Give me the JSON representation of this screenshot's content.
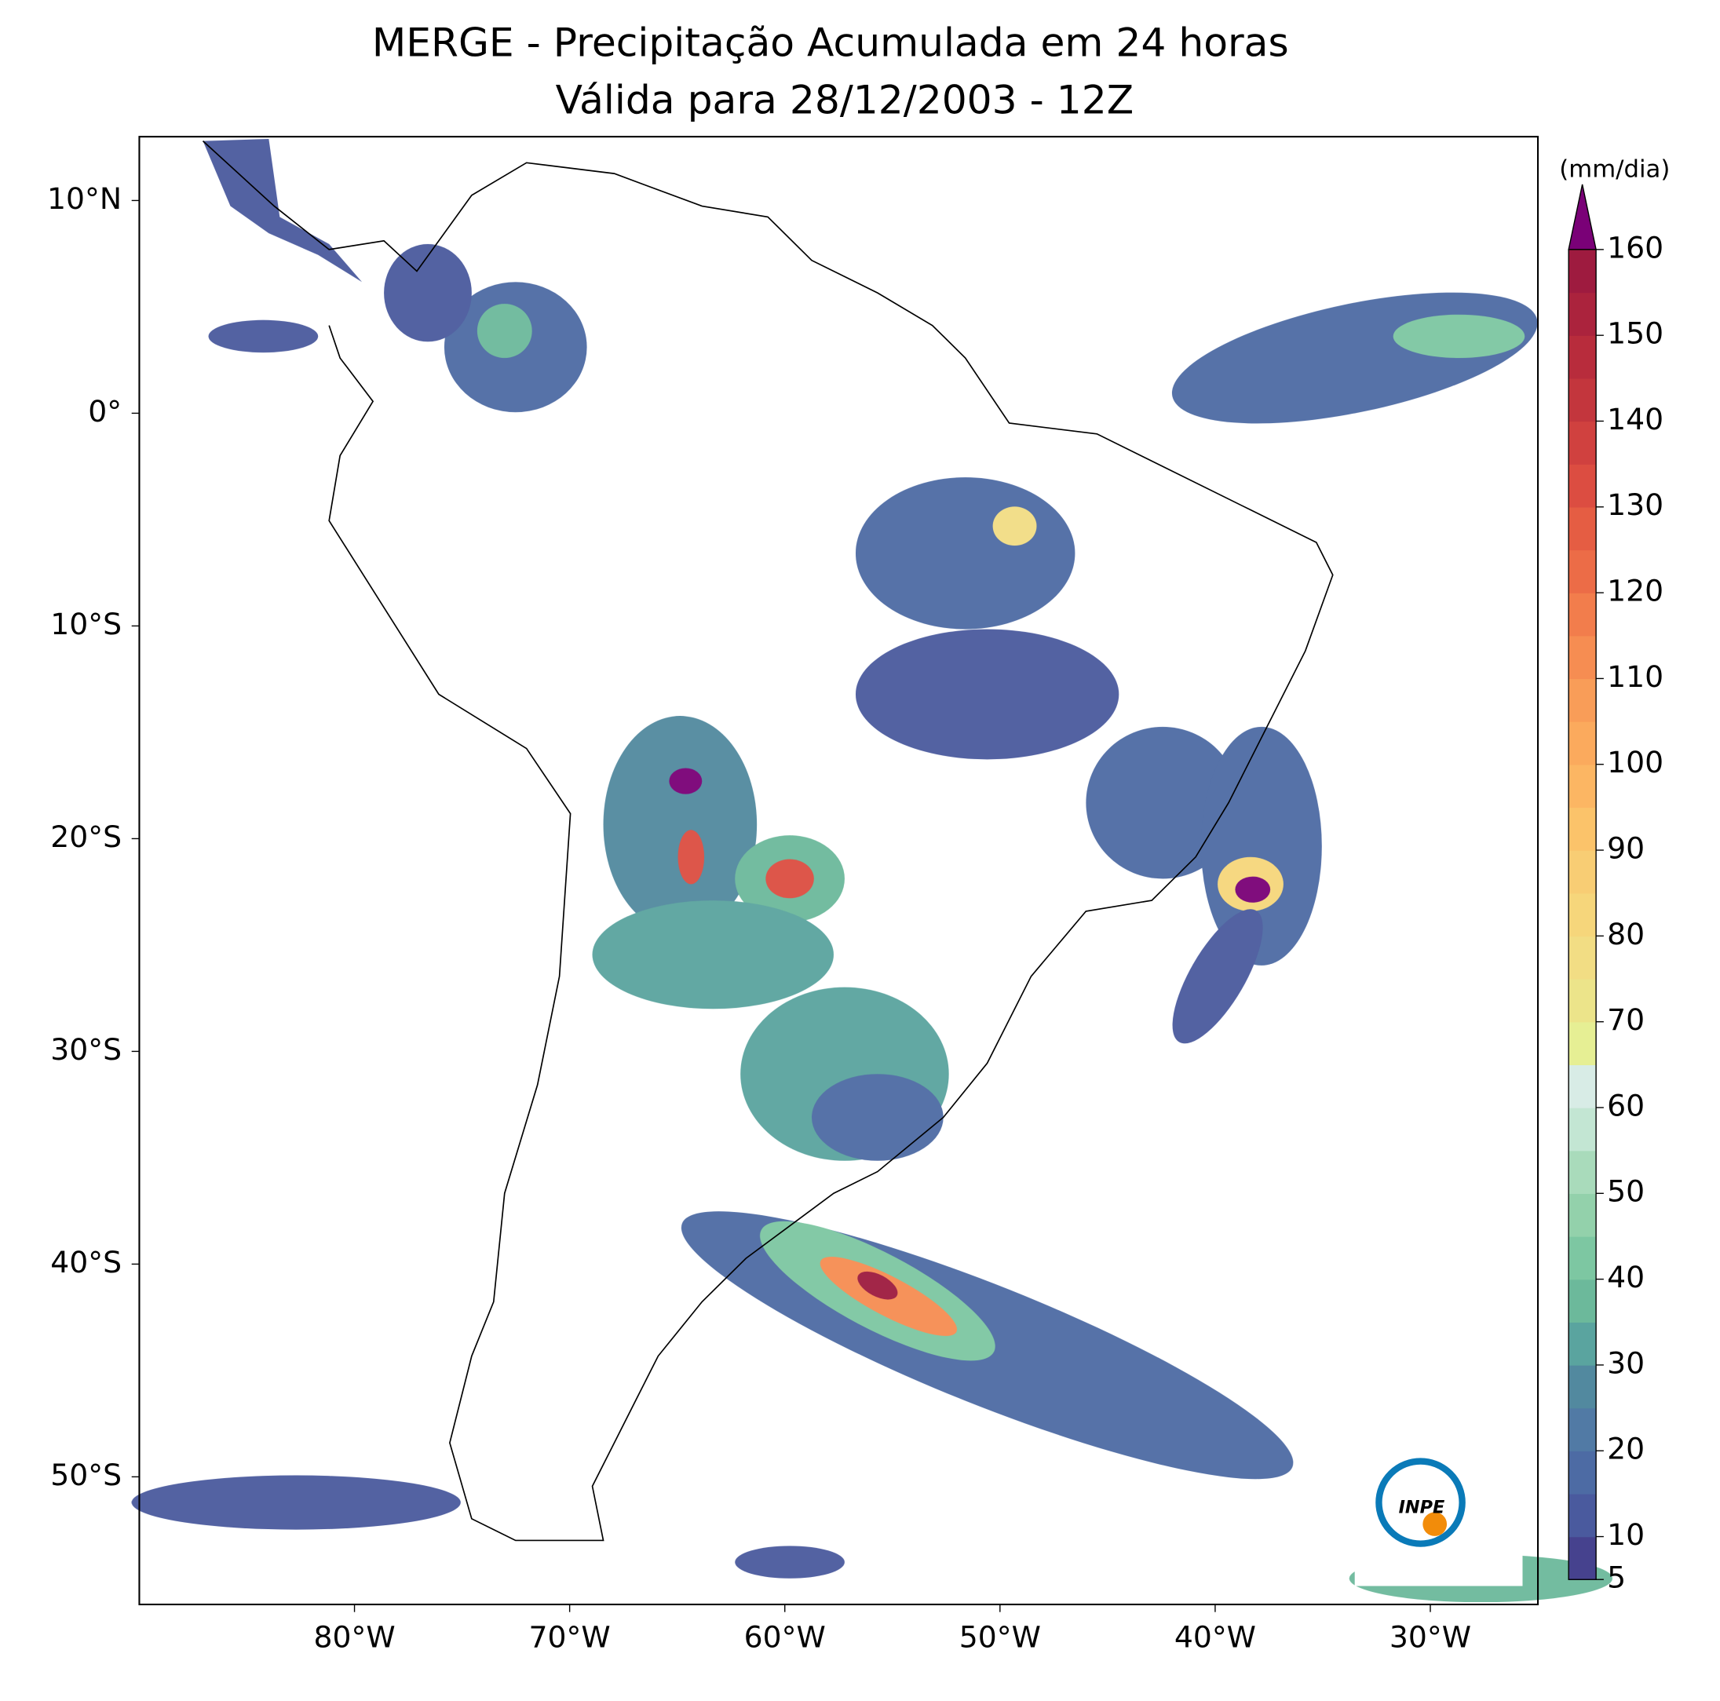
{
  "title": [
    "MERGE - Precipitação Acumulada em 24 horas",
    "Válida para 28/12/2003 - 12Z"
  ],
  "map": {
    "lonlim": [
      -90,
      -25
    ],
    "latlim": [
      -56,
      13
    ],
    "lon_ticks": [
      {
        "value": -80,
        "label": "80°W"
      },
      {
        "value": -70,
        "label": "70°W"
      },
      {
        "value": -60,
        "label": "60°W"
      },
      {
        "value": -50,
        "label": "50°W"
      },
      {
        "value": -40,
        "label": "40°W"
      },
      {
        "value": -30,
        "label": "30°W"
      }
    ],
    "lat_ticks": [
      {
        "value": 10,
        "label": "10°N"
      },
      {
        "value": 0,
        "label": "0°"
      },
      {
        "value": -10,
        "label": "10°S"
      },
      {
        "value": -20,
        "label": "20°S"
      },
      {
        "value": -30,
        "label": "30°S"
      },
      {
        "value": -40,
        "label": "40°S"
      },
      {
        "value": -50,
        "label": "50°S"
      }
    ]
  },
  "colorbar": {
    "label": "(mm/dia)",
    "lim": [
      5,
      160
    ],
    "ticks": [
      5,
      10,
      20,
      30,
      40,
      50,
      60,
      70,
      80,
      90,
      100,
      110,
      120,
      130,
      140,
      150,
      160
    ],
    "colors": [
      "#46428e",
      "#4a5a9e",
      "#4d6ba4",
      "#517aa5",
      "#52899f",
      "#5aa49f",
      "#6cb99b",
      "#7dc7a2",
      "#93d1ab",
      "#a9dbbb",
      "#c3e6d3",
      "#d8ece6",
      "#e6ef94",
      "#ece48a",
      "#f2dd84",
      "#f6d67b",
      "#f8cd74",
      "#fbc36a",
      "#fcb663",
      "#fbaa5d",
      "#f99d58",
      "#f68d52",
      "#f27d4c",
      "#ec6c47",
      "#e55d43",
      "#dc4d41",
      "#d0413f",
      "#c3363d",
      "#b82c3c",
      "#ab233d",
      "#9e1b3f"
    ],
    "extend_color": "#7a0177"
  },
  "logo_text": "INPE"
}
